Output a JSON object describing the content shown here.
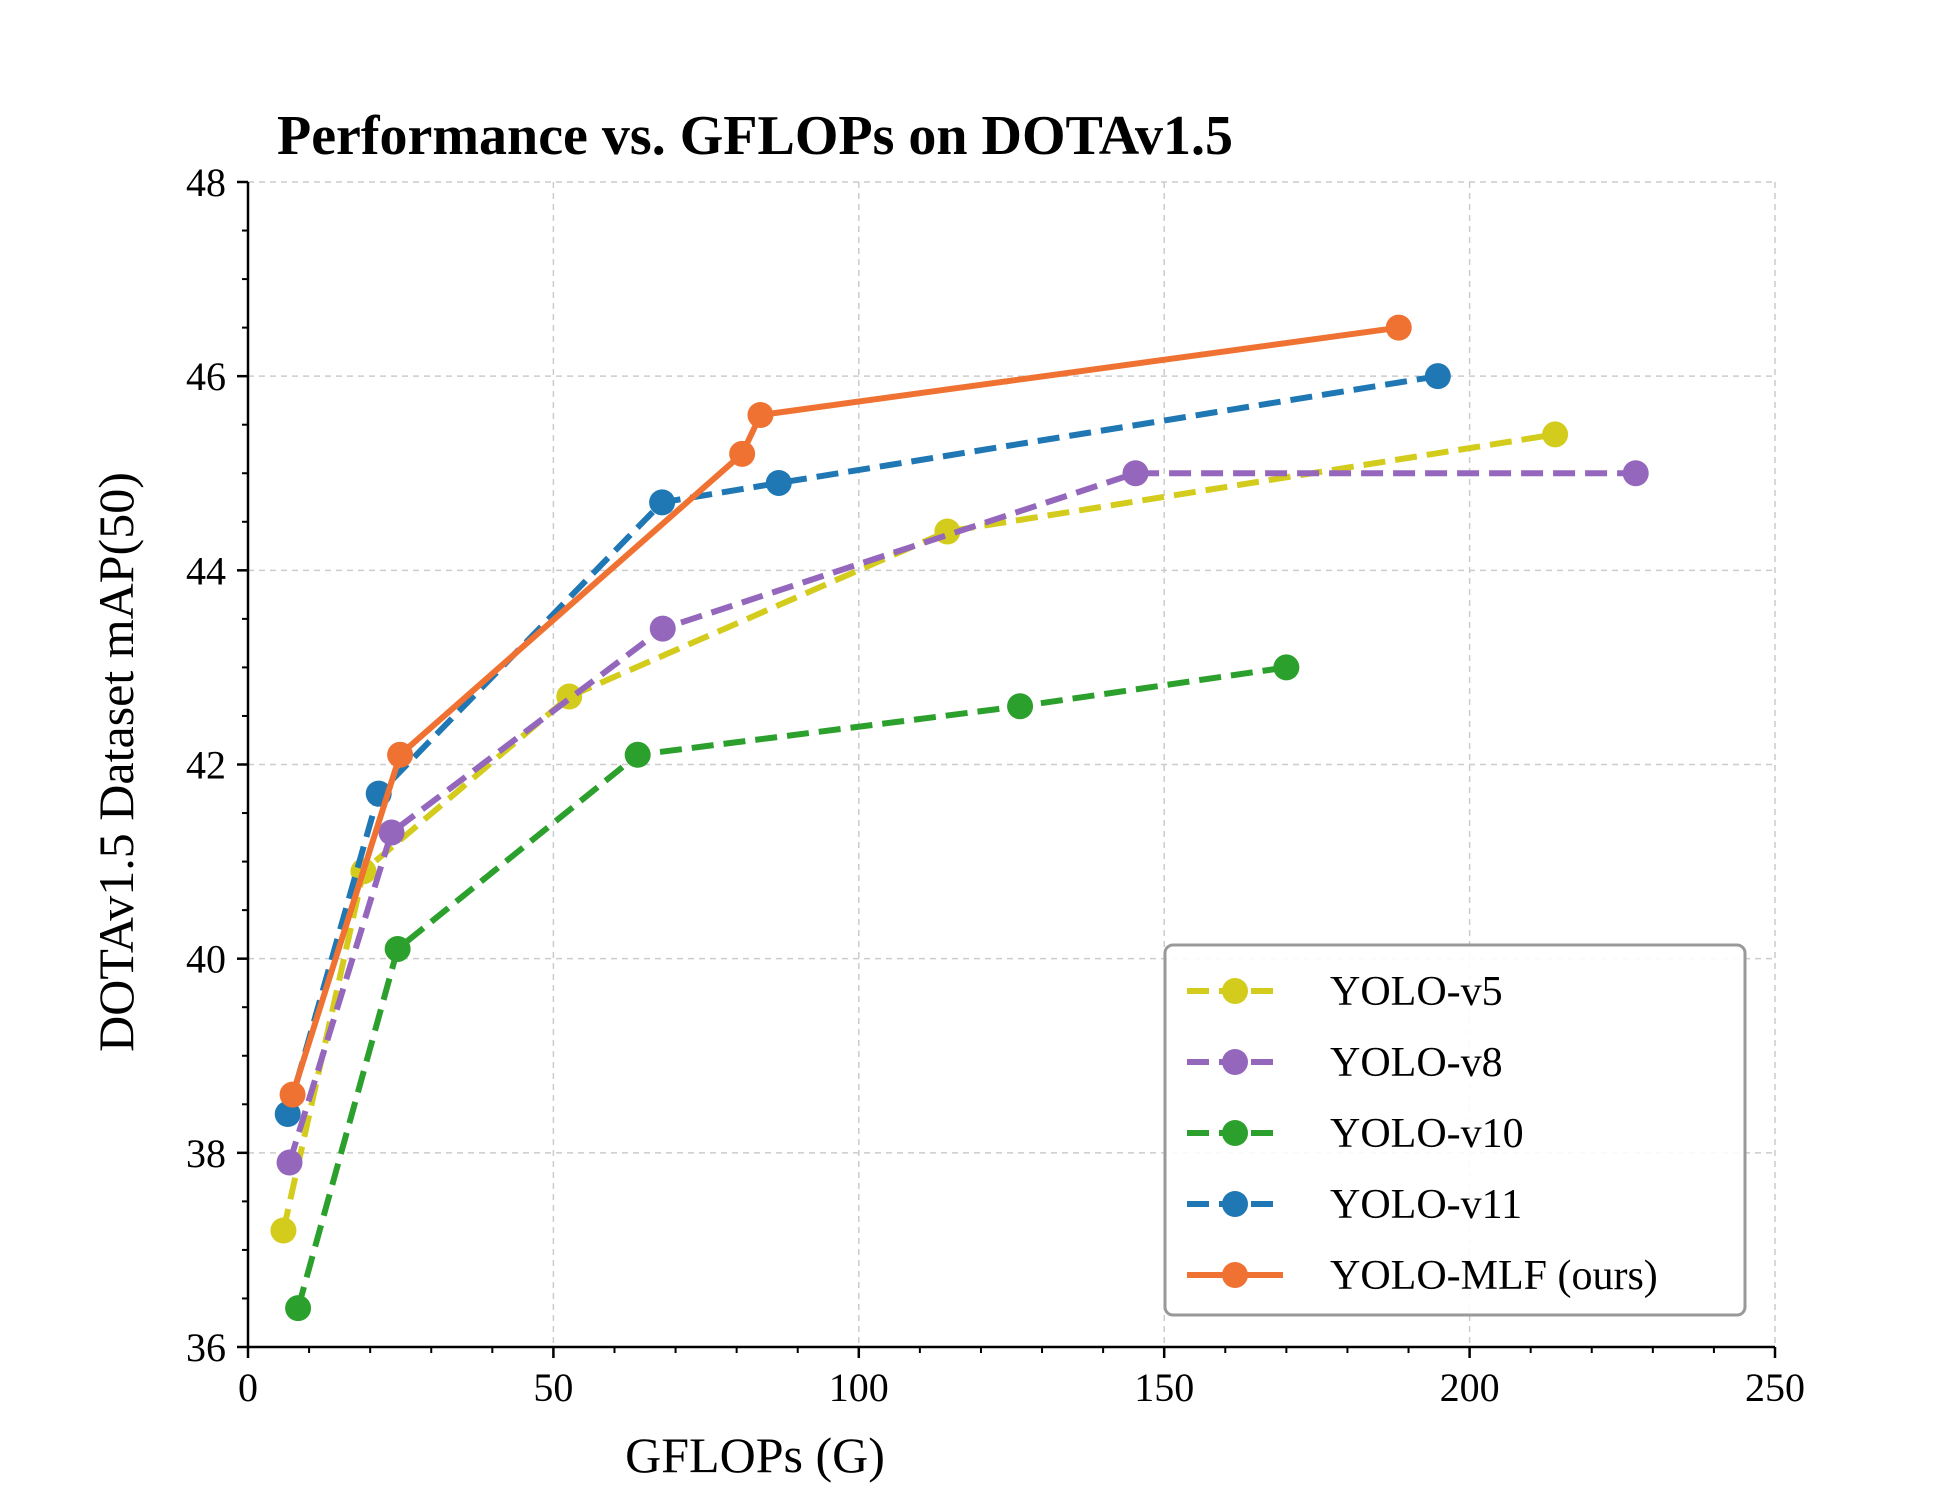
{
  "chart_data": {
    "type": "line",
    "title": "Performance vs. GFLOPs on DOTAv1.5",
    "xlabel": "GFLOPs (G)",
    "ylabel": "DOTAv1.5 Dataset mAP(50)",
    "xlim": [
      0,
      250
    ],
    "ylim": [
      36,
      48
    ],
    "xticks": [
      0,
      50,
      100,
      150,
      200,
      250
    ],
    "xtick_labels": [
      "0",
      "50",
      "100",
      "150",
      "200",
      "250"
    ],
    "yticks": [
      36,
      38,
      40,
      42,
      44,
      46,
      48
    ],
    "ytick_labels": [
      "36",
      "38",
      "40",
      "42",
      "44",
      "46",
      "48"
    ],
    "x_minor_step": 10,
    "y_minor_step": 0.5,
    "grid": true,
    "legend_position": "lower-right",
    "series": [
      {
        "name": "YOLO-v5",
        "color": "#d4cc1c",
        "line_style": "dashed",
        "x": [
          5.8,
          18.9,
          52.6,
          114.5,
          214.0
        ],
        "y": [
          37.2,
          40.9,
          42.7,
          44.4,
          45.4
        ]
      },
      {
        "name": "YOLO-v8",
        "color": "#9467bd",
        "line_style": "dashed",
        "x": [
          6.8,
          23.5,
          67.9,
          145.3,
          227.2
        ],
        "y": [
          37.9,
          41.3,
          43.4,
          45.0,
          45.0
        ]
      },
      {
        "name": "YOLO-v10",
        "color": "#2ca02c",
        "line_style": "dashed",
        "x": [
          8.2,
          24.5,
          63.8,
          126.4,
          170.0
        ],
        "y": [
          36.4,
          40.1,
          42.1,
          42.6,
          43.0
        ]
      },
      {
        "name": "YOLO-v11",
        "color": "#1f77b4",
        "line_style": "dashed",
        "x": [
          6.5,
          21.4,
          67.8,
          86.9,
          194.8
        ],
        "y": [
          38.4,
          41.7,
          44.7,
          44.9,
          46.0
        ]
      },
      {
        "name": "YOLO-MLF (ours)",
        "color": "#f07232",
        "line_style": "solid",
        "x": [
          7.3,
          24.9,
          80.9,
          83.9,
          188.4
        ],
        "y": [
          38.6,
          42.1,
          45.2,
          45.6,
          46.5
        ]
      }
    ]
  }
}
